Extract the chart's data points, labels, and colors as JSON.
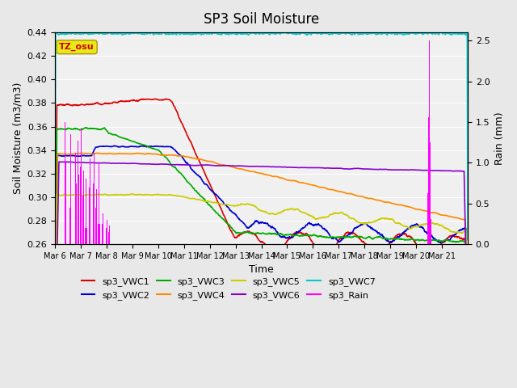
{
  "title": "SP3 Soil Moisture",
  "xlabel": "Time",
  "ylabel_left": "Soil Moisture (m3/m3)",
  "ylabel_right": "Rain (mm)",
  "ylim_left": [
    0.26,
    0.44
  ],
  "ylim_right": [
    0.0,
    2.6
  ],
  "bg_color": "#e8e8e8",
  "plot_bg_color": "#f0f0f0",
  "tz_label": "TZ_osu",
  "xtick_labels": [
    "Mar 6",
    "Mar 7",
    "Mar 8",
    "Mar 9",
    "Mar 10",
    "Mar 11",
    "Mar 12",
    "Mar 13",
    "Mar 14",
    "Mar 15",
    "Mar 16",
    "Mar 17",
    "Mar 18",
    "Mar 19",
    "Mar 20",
    "Mar 21"
  ],
  "vwc1_color": "#dd0000",
  "vwc2_color": "#0000cc",
  "vwc3_color": "#00aa00",
  "vwc4_color": "#ff8800",
  "vwc5_color": "#cccc00",
  "vwc6_color": "#8800cc",
  "vwc7_color": "#00cccc",
  "rain_color": "#ff00ff",
  "legend_labels": [
    "sp3_VWC1",
    "sp3_VWC2",
    "sp3_VWC3",
    "sp3_VWC4",
    "sp3_VWC5",
    "sp3_VWC6",
    "sp3_VWC7",
    "sp3_Rain"
  ]
}
